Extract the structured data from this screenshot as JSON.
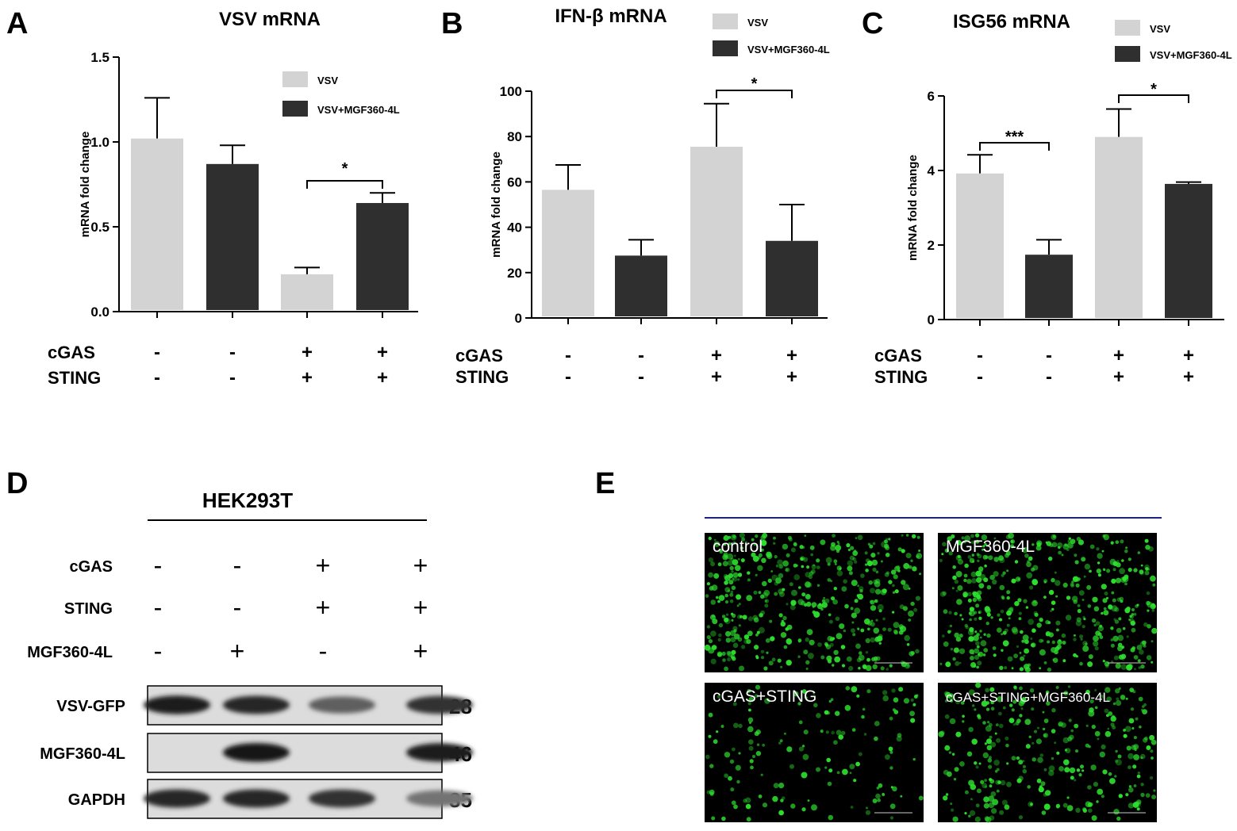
{
  "colors": {
    "vsv": "#d3d3d3",
    "vsv_mgf": "#2f2f2f",
    "axis": "#000000",
    "fluor": "#2ee02e",
    "divider": "#1a237e"
  },
  "panels": {
    "A": {
      "letter": "A"
    },
    "B": {
      "letter": "B"
    },
    "C": {
      "letter": "C"
    },
    "D": {
      "letter": "D",
      "cell_line": "HEK293T",
      "rows": [
        {
          "label": "cGAS",
          "signs": [
            "-",
            "-",
            "+",
            "+"
          ]
        },
        {
          "label": "STING",
          "signs": [
            "-",
            "-",
            "+",
            "+"
          ]
        },
        {
          "label": "MGF360-4L",
          "signs": [
            "-",
            "+",
            "-",
            "+"
          ]
        }
      ],
      "blots": [
        {
          "label": "VSV-GFP",
          "kda": "28",
          "intensity": [
            0.9,
            0.85,
            0.55,
            0.8
          ]
        },
        {
          "label": "MGF360-4L",
          "kda": "46",
          "intensity": [
            0,
            0.95,
            0,
            0.9
          ]
        },
        {
          "label": "GAPDH",
          "kda": "35",
          "intensity": [
            0.85,
            0.85,
            0.8,
            0.45
          ]
        }
      ]
    },
    "E": {
      "letter": "E",
      "images": [
        {
          "label": "control",
          "density": 0.9
        },
        {
          "label": "MGF360-4L",
          "density": 0.9
        },
        {
          "label": "cGAS+STING",
          "density": 0.3
        },
        {
          "label": "cGAS+STING+MGF360-4L",
          "density": 0.6
        }
      ]
    }
  },
  "chart_data": [
    {
      "type": "bar",
      "title": "VSV mRNA",
      "ylabel": "mRNA fold change",
      "ylim": [
        0,
        1.5
      ],
      "yticks": [
        "0.0",
        "0.5",
        "1.0",
        "1.5"
      ],
      "groups": [
        {
          "cGAS": "-",
          "STING": "-"
        },
        {
          "cGAS": "-",
          "STING": "-"
        },
        {
          "cGAS": "+",
          "STING": "+"
        },
        {
          "cGAS": "+",
          "STING": "+"
        }
      ],
      "series": [
        {
          "name": "VSV",
          "positions": [
            0,
            2
          ],
          "values": [
            1.02,
            0.22
          ],
          "errors": [
            0.24,
            0.04
          ]
        },
        {
          "name": "VSV+MGF360-4L",
          "positions": [
            1,
            3
          ],
          "values": [
            0.87,
            0.64
          ],
          "errors": [
            0.11,
            0.06
          ]
        }
      ],
      "significance": [
        {
          "from": 2,
          "to": 3,
          "label": "*"
        }
      ],
      "legend": "top-right"
    },
    {
      "type": "bar",
      "title": "IFN-β mRNA",
      "ylabel": "mRNA fold change",
      "ylim": [
        0,
        100
      ],
      "yticks": [
        "0",
        "20",
        "40",
        "60",
        "80",
        "100"
      ],
      "groups": [
        {
          "cGAS": "-",
          "STING": "-"
        },
        {
          "cGAS": "-",
          "STING": "-"
        },
        {
          "cGAS": "+",
          "STING": "+"
        },
        {
          "cGAS": "+",
          "STING": "+"
        }
      ],
      "series": [
        {
          "name": "VSV",
          "positions": [
            0,
            2
          ],
          "values": [
            56.5,
            75.5
          ],
          "errors": [
            11,
            19
          ]
        },
        {
          "name": "VSV+MGF360-4L",
          "positions": [
            1,
            3
          ],
          "values": [
            27.5,
            34
          ],
          "errors": [
            7,
            16
          ]
        }
      ],
      "significance": [
        {
          "from": 2,
          "to": 3,
          "label": "*"
        }
      ],
      "legend": "top-right"
    },
    {
      "type": "bar",
      "title": "ISG56 mRNA",
      "ylabel": "mRNA fold change",
      "ylim": [
        0,
        6
      ],
      "yticks": [
        "0",
        "2",
        "4",
        "6"
      ],
      "groups": [
        {
          "cGAS": "-",
          "STING": "-"
        },
        {
          "cGAS": "-",
          "STING": "-"
        },
        {
          "cGAS": "+",
          "STING": "+"
        },
        {
          "cGAS": "+",
          "STING": "+"
        }
      ],
      "series": [
        {
          "name": "VSV",
          "positions": [
            0,
            2
          ],
          "values": [
            3.92,
            4.9
          ],
          "errors": [
            0.5,
            0.75
          ]
        },
        {
          "name": "VSV+MGF360-4L",
          "positions": [
            1,
            3
          ],
          "values": [
            1.74,
            3.64
          ],
          "errors": [
            0.4,
            0.05
          ]
        }
      ],
      "significance": [
        {
          "from": 0,
          "to": 1,
          "label": "***"
        },
        {
          "from": 2,
          "to": 3,
          "label": "*"
        }
      ],
      "legend": "top-right"
    }
  ]
}
